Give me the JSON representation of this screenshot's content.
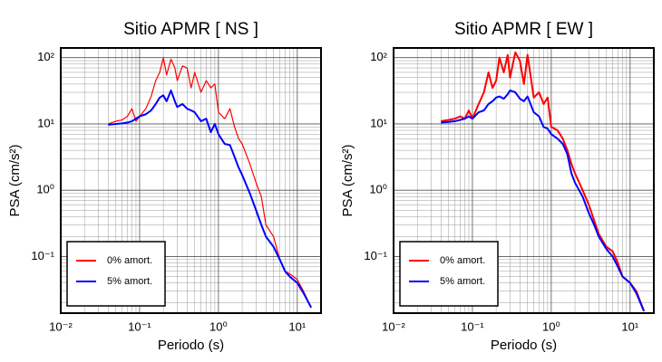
{
  "chart_data": [
    {
      "type": "line",
      "title": "Sitio APMR [ NS ]",
      "xlabel": "Periodo (s)",
      "ylabel": "PSA (cm/s²)",
      "xscale": "log",
      "yscale": "log",
      "grid": true,
      "minor_grid": true,
      "legend": "lower left",
      "xlim": [
        0.01,
        20
      ],
      "ylim": [
        0.014,
        140
      ],
      "xticks": [
        {
          "value": 0.01,
          "label": "10⁻²"
        },
        {
          "value": 0.1,
          "label": "10⁻¹"
        },
        {
          "value": 1,
          "label": "10⁰"
        },
        {
          "value": 10,
          "label": "10¹"
        }
      ],
      "yticks": [
        {
          "value": 0.1,
          "label": "10⁻¹"
        },
        {
          "value": 1,
          "label": "10⁰"
        },
        {
          "value": 10,
          "label": "10¹"
        },
        {
          "value": 100,
          "label": "10²"
        }
      ],
      "x": [
        0.04,
        0.05,
        0.06,
        0.07,
        0.08,
        0.09,
        0.1,
        0.12,
        0.14,
        0.16,
        0.18,
        0.2,
        0.22,
        0.25,
        0.28,
        0.3,
        0.35,
        0.4,
        0.45,
        0.5,
        0.6,
        0.7,
        0.8,
        0.9,
        1.0,
        1.2,
        1.4,
        1.6,
        1.8,
        2.0,
        2.5,
        3,
        3.5,
        4,
        5,
        6,
        7,
        8,
        10,
        12,
        15
      ],
      "series": [
        {
          "name": "0% amort.",
          "color": "#ff0000",
          "width": 1.2,
          "values": [
            10,
            11,
            11.5,
            13,
            17,
            11,
            13,
            17,
            26,
            45,
            60,
            100,
            55,
            95,
            70,
            45,
            75,
            70,
            35,
            60,
            30,
            45,
            35,
            40,
            15,
            12,
            17,
            9,
            6,
            5,
            2.5,
            1.3,
            0.8,
            0.3,
            0.2,
            0.09,
            0.06,
            0.055,
            0.045,
            0.03,
            0.017
          ]
        },
        {
          "name": "5% amort.",
          "color": "#0000ff",
          "width": 2,
          "values": [
            9.7,
            10,
            10.2,
            10.5,
            11,
            12,
            13,
            14,
            16,
            20,
            25,
            27,
            22,
            32,
            22,
            18,
            20,
            17,
            16,
            15,
            11,
            12,
            7.5,
            10,
            7,
            5,
            4.8,
            3.2,
            2.2,
            1.7,
            0.9,
            0.5,
            0.3,
            0.2,
            0.14,
            0.09,
            0.06,
            0.05,
            0.04,
            0.028,
            0.017
          ]
        }
      ]
    },
    {
      "type": "line",
      "title": "Sitio APMR [ EW ]",
      "xlabel": "Periodo (s)",
      "ylabel": "PSA (cm/s²)",
      "xscale": "log",
      "yscale": "log",
      "grid": true,
      "minor_grid": true,
      "legend": "lower left",
      "xlim": [
        0.01,
        20
      ],
      "ylim": [
        0.014,
        140
      ],
      "xticks": [
        {
          "value": 0.01,
          "label": "10⁻²"
        },
        {
          "value": 0.1,
          "label": "10⁻¹"
        },
        {
          "value": 1,
          "label": "10⁰"
        },
        {
          "value": 10,
          "label": "10¹"
        }
      ],
      "yticks": [
        {
          "value": 0.1,
          "label": "10⁻¹"
        },
        {
          "value": 1,
          "label": "10⁰"
        },
        {
          "value": 10,
          "label": "10¹"
        },
        {
          "value": 100,
          "label": "10²"
        }
      ],
      "x": [
        0.04,
        0.05,
        0.06,
        0.07,
        0.08,
        0.09,
        0.1,
        0.12,
        0.14,
        0.16,
        0.18,
        0.2,
        0.22,
        0.25,
        0.28,
        0.3,
        0.35,
        0.4,
        0.45,
        0.5,
        0.6,
        0.7,
        0.8,
        0.9,
        1.0,
        1.2,
        1.4,
        1.6,
        1.8,
        2.0,
        2.5,
        3,
        3.5,
        4,
        5,
        6,
        7,
        8,
        10,
        12,
        15
      ],
      "series": [
        {
          "name": "0% amort.",
          "color": "#ff0000",
          "width": 2,
          "values": [
            11,
            11.5,
            12,
            13,
            12,
            16,
            12,
            20,
            30,
            60,
            35,
            45,
            100,
            60,
            110,
            50,
            120,
            90,
            40,
            110,
            25,
            30,
            20,
            25,
            9,
            8,
            6,
            4,
            2.5,
            1.8,
            1,
            0.6,
            0.35,
            0.22,
            0.14,
            0.12,
            0.08,
            0.05,
            0.04,
            0.03,
            0.015
          ]
        },
        {
          "name": "5% amort.",
          "color": "#0000ff",
          "width": 2,
          "values": [
            10.5,
            10.7,
            11,
            11.5,
            12,
            13,
            12,
            15,
            16,
            20,
            22,
            25,
            26,
            24,
            28,
            32,
            30,
            24,
            22,
            26,
            15,
            13,
            9,
            8.5,
            7,
            6,
            5,
            3.5,
            1.8,
            1.3,
            0.8,
            0.45,
            0.3,
            0.2,
            0.13,
            0.1,
            0.07,
            0.05,
            0.04,
            0.028,
            0.015
          ]
        }
      ]
    }
  ]
}
